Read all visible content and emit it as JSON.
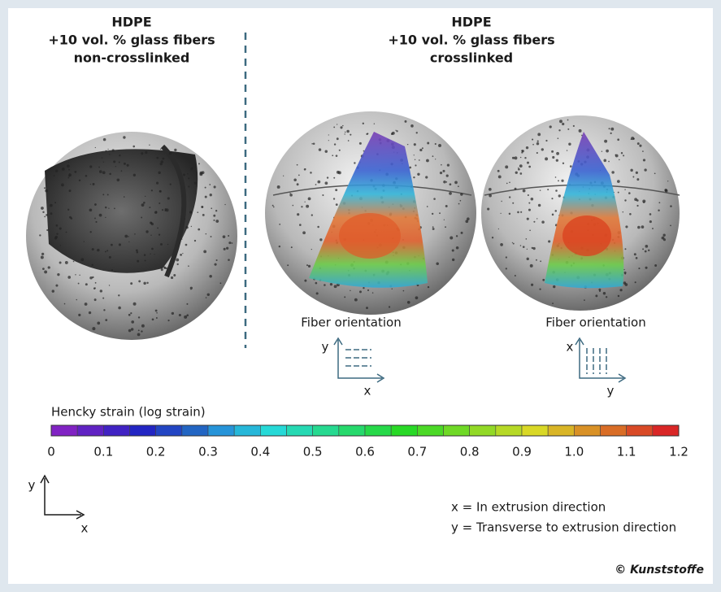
{
  "panels": [
    {
      "title": [
        "HDPE",
        "+10 vol. % glass fibers",
        "non-crosslinked"
      ]
    },
    {
      "title": [
        "HDPE",
        "+10 vol. % glass fibers",
        "crosslinked"
      ]
    }
  ],
  "fiber_orientation": [
    {
      "label": "Fiber orientation",
      "vertical_axis": "y",
      "horizontal_axis": "x"
    },
    {
      "label": "Fiber orientation",
      "vertical_axis": "x",
      "horizontal_axis": "y"
    }
  ],
  "colorbar": {
    "title": "Hencky strain (log strain)",
    "ticks": [
      "0",
      "0.1",
      "0.2",
      "0.3",
      "0.4",
      "0.5",
      "0.6",
      "0.7",
      "0.8",
      "0.9",
      "1.0",
      "1.1",
      "1.2"
    ]
  },
  "axes": {
    "vertical": "y",
    "horizontal": "x"
  },
  "legend": [
    "x = In extrusion direction",
    "y = Transverse to extrusion direction"
  ],
  "credit": "© Kunststoffe"
}
